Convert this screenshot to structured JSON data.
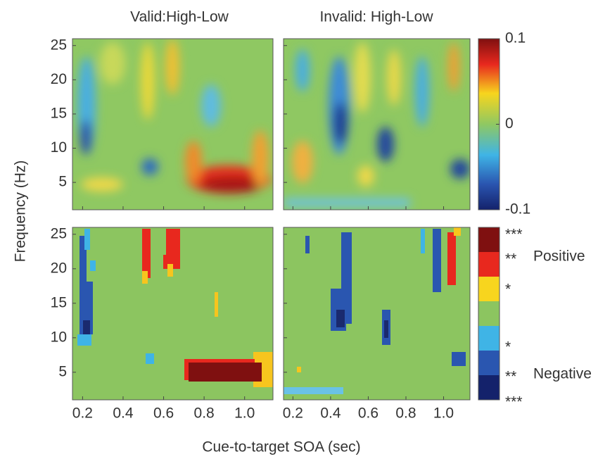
{
  "chart_data": {
    "type": "heatmap",
    "titles": [
      "Valid:High-Low",
      "Invalid: High-Low"
    ],
    "ylabel": "Frequency (Hz)",
    "xlabel": "Cue-to-target SOA (sec)",
    "xlim": [
      0.15,
      1.14
    ],
    "xticks": [
      0.2,
      0.4,
      0.6,
      0.8,
      {
        "value": 1,
        "label": "1.0"
      }
    ],
    "ylim": [
      1,
      26
    ],
    "yticks": [
      5,
      10,
      15,
      20,
      25
    ],
    "colorbar": {
      "lim": [
        -0.1,
        0.1
      ],
      "ticks": [
        0.1,
        0,
        -0.1
      ]
    },
    "significance_levels": [
      "***",
      "**",
      "*",
      "*",
      "**",
      "***"
    ],
    "significance_groups": [
      "Positive",
      "Negative"
    ]
  }
}
